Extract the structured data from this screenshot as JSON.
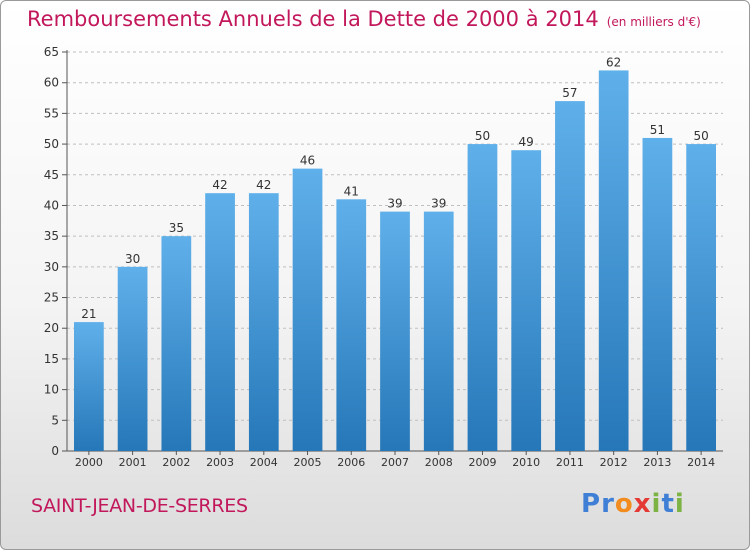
{
  "title": "Remboursements Annuels de la Dette de 2000 à 2014",
  "unit_note": "(en milliers d'€)",
  "commune": "SAINT-JEAN-DE-SERRES",
  "logo": {
    "text": "Proxiti",
    "letters": [
      {
        "ch": "P",
        "color": "#3f7fd6"
      },
      {
        "ch": "r",
        "color": "#3f7fd6"
      },
      {
        "ch": "o",
        "color": "#f28c1e"
      },
      {
        "ch": "x",
        "color": "#e53935"
      },
      {
        "ch": "i",
        "color": "#7cb342"
      },
      {
        "ch": "t",
        "color": "#3f7fd6"
      },
      {
        "ch": "i",
        "color": "#7cb342"
      }
    ]
  },
  "colors": {
    "accent": "#c2185b",
    "bar_light": "#5fb0ea",
    "bar_dark": "#2677b8",
    "grid": "#bfbfbf"
  },
  "chart_data": {
    "type": "bar",
    "title": "Remboursements Annuels de la Dette de 2000 à 2014",
    "xlabel": "",
    "ylabel": "",
    "categories": [
      "2000",
      "2001",
      "2002",
      "2003",
      "2004",
      "2005",
      "2006",
      "2007",
      "2008",
      "2009",
      "2010",
      "2011",
      "2012",
      "2013",
      "2014"
    ],
    "values": [
      21,
      30,
      35,
      42,
      42,
      46,
      41,
      39,
      39,
      50,
      49,
      57,
      62,
      51,
      50
    ],
    "ylim": [
      0,
      65
    ],
    "yticks": [
      0,
      5,
      10,
      15,
      20,
      25,
      30,
      35,
      40,
      45,
      50,
      55,
      60,
      65
    ],
    "grid": true
  }
}
